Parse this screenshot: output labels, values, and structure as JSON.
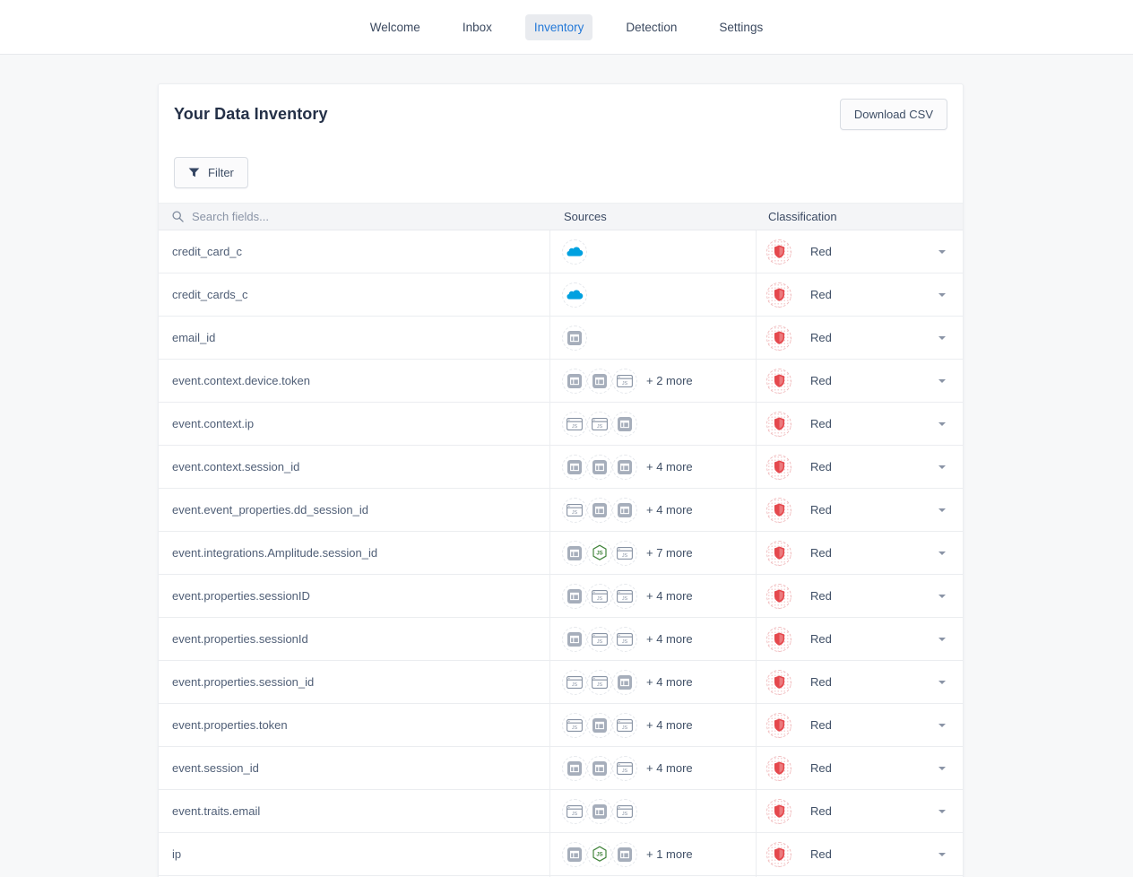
{
  "nav": {
    "items": [
      {
        "label": "Welcome"
      },
      {
        "label": "Inbox"
      },
      {
        "label": "Inventory"
      },
      {
        "label": "Detection"
      },
      {
        "label": "Settings"
      }
    ],
    "active": "Inventory"
  },
  "header": {
    "title": "Your Data Inventory",
    "download_button": "Download CSV"
  },
  "toolbar": {
    "filter_button": "Filter"
  },
  "table": {
    "search_placeholder": "Search fields...",
    "columns": {
      "sources": "Sources",
      "classification": "Classification"
    },
    "rows": [
      {
        "field": "credit_card_c",
        "sources": [
          "salesforce-icon"
        ],
        "more": "",
        "classification": "Red"
      },
      {
        "field": "credit_cards_c",
        "sources": [
          "salesforce-icon"
        ],
        "more": "",
        "classification": "Red"
      },
      {
        "field": "email_id",
        "sources": [
          "app-window-icon"
        ],
        "more": "",
        "classification": "Red"
      },
      {
        "field": "event.context.device.token",
        "sources": [
          "app-window-icon",
          "app-window-icon",
          "browser-js-icon"
        ],
        "more": "+ 2 more",
        "classification": "Red"
      },
      {
        "field": "event.context.ip",
        "sources": [
          "browser-js-icon",
          "browser-js-icon",
          "app-window-icon"
        ],
        "more": "",
        "classification": "Red"
      },
      {
        "field": "event.context.session_id",
        "sources": [
          "app-window-icon",
          "app-window-icon",
          "app-window-icon"
        ],
        "more": "+ 4 more",
        "classification": "Red"
      },
      {
        "field": "event.event_properties.dd_session_id",
        "sources": [
          "browser-js-icon",
          "app-window-icon",
          "app-window-icon"
        ],
        "more": "+ 4 more",
        "classification": "Red"
      },
      {
        "field": "event.integrations.Amplitude.session_id",
        "sources": [
          "app-window-icon",
          "nodejs-icon",
          "browser-js-icon"
        ],
        "more": "+ 7 more",
        "classification": "Red"
      },
      {
        "field": "event.properties.sessionID",
        "sources": [
          "app-window-icon",
          "browser-js-icon",
          "browser-js-icon"
        ],
        "more": "+ 4 more",
        "classification": "Red"
      },
      {
        "field": "event.properties.sessionId",
        "sources": [
          "app-window-icon",
          "browser-js-icon",
          "browser-js-icon"
        ],
        "more": "+ 4 more",
        "classification": "Red"
      },
      {
        "field": "event.properties.session_id",
        "sources": [
          "browser-js-icon",
          "browser-js-icon",
          "app-window-icon"
        ],
        "more": "+ 4 more",
        "classification": "Red"
      },
      {
        "field": "event.properties.token",
        "sources": [
          "browser-js-icon",
          "app-window-icon",
          "browser-js-icon"
        ],
        "more": "+ 4 more",
        "classification": "Red"
      },
      {
        "field": "event.session_id",
        "sources": [
          "app-window-icon",
          "app-window-icon",
          "browser-js-icon"
        ],
        "more": "+ 4 more",
        "classification": "Red"
      },
      {
        "field": "event.traits.email",
        "sources": [
          "browser-js-icon",
          "app-window-icon",
          "browser-js-icon"
        ],
        "more": "",
        "classification": "Red"
      },
      {
        "field": "ip",
        "sources": [
          "app-window-icon",
          "nodejs-icon",
          "app-window-icon"
        ],
        "more": "+ 1 more",
        "classification": "Red"
      }
    ]
  },
  "colors": {
    "accent_blue": "#2479d8",
    "salesforce_blue": "#00a1e0",
    "nodejs_green": "#43853d",
    "classification_red": "#e5484d",
    "icon_gray": "#a6aebb",
    "outline_gray": "#8893a4"
  }
}
